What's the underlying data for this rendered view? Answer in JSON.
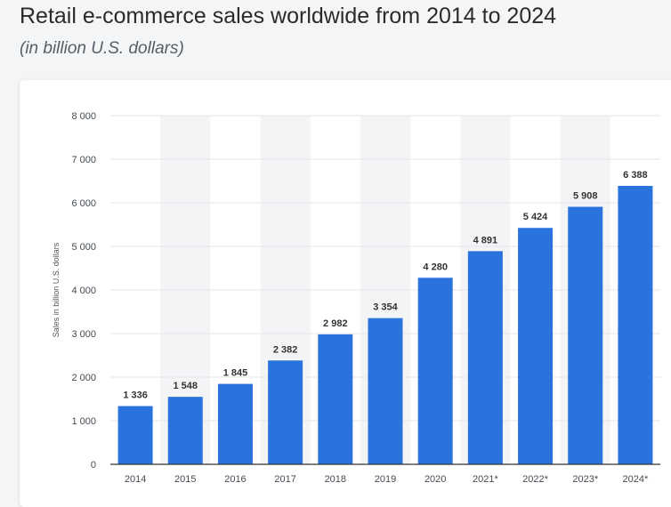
{
  "header": {
    "title": "Retail e-commerce sales worldwide from 2014 to 2024",
    "subtitle": "(in billion U.S. dollars)"
  },
  "colors": {
    "bar": "#2a73dc",
    "band": "#f3f4f6",
    "grid": "#e3e6ea",
    "axis": "#333333",
    "text": "#444b52"
  },
  "chart_data": {
    "type": "bar",
    "categories": [
      "2014",
      "2015",
      "2016",
      "2017",
      "2018",
      "2019",
      "2020",
      "2021*",
      "2022*",
      "2023*",
      "2024*"
    ],
    "values": [
      1336,
      1548,
      1845,
      2382,
      2982,
      3354,
      4280,
      4891,
      5424,
      5908,
      6388
    ],
    "value_labels": [
      "1 336",
      "1 548",
      "1 845",
      "2 382",
      "2 982",
      "3 354",
      "4 280",
      "4 891",
      "5 424",
      "5 908",
      "6 388"
    ],
    "ylim": [
      0,
      8000
    ],
    "yticks": [
      0,
      1000,
      2000,
      3000,
      4000,
      5000,
      6000,
      7000,
      8000
    ],
    "ytick_labels": [
      "0",
      "1 000",
      "2 000",
      "3 000",
      "4 000",
      "5 000",
      "6 000",
      "7 000",
      "8 000"
    ],
    "ylabel": "Sales in billion U.S. dollars",
    "xlabel": "",
    "grid": true
  }
}
